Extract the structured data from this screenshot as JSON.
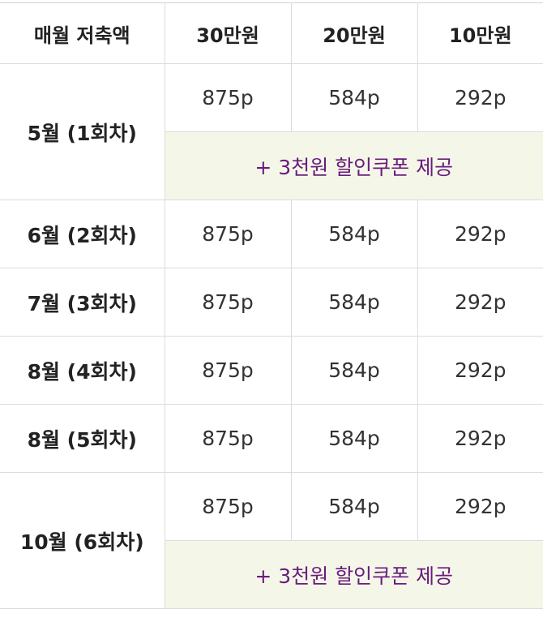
{
  "header": {
    "col0": "매월 저축액",
    "col1": "30만원",
    "col2": "20만원",
    "col3": "10만원"
  },
  "rows": [
    {
      "month": "5월 (1회차)",
      "p30": "875p",
      "p20": "584p",
      "p10": "292p",
      "coupon": "+ 3천원 할인쿠폰 제공"
    },
    {
      "month": "6월 (2회차)",
      "p30": "875p",
      "p20": "584p",
      "p10": "292p"
    },
    {
      "month": "7월 (3회차)",
      "p30": "875p",
      "p20": "584p",
      "p10": "292p"
    },
    {
      "month": "8월 (4회차)",
      "p30": "875p",
      "p20": "584p",
      "p10": "292p"
    },
    {
      "month": "8월 (5회차)",
      "p30": "875p",
      "p20": "584p",
      "p10": "292p"
    },
    {
      "month": "10월 (6회차)",
      "p30": "875p",
      "p20": "584p",
      "p10": "292p",
      "coupon": "+ 3천원 할인쿠폰 제공"
    }
  ],
  "colors": {
    "coupon_bg": "#f4f7e8",
    "coupon_text": "#6a1b7f",
    "border": "#dcdcdc"
  }
}
